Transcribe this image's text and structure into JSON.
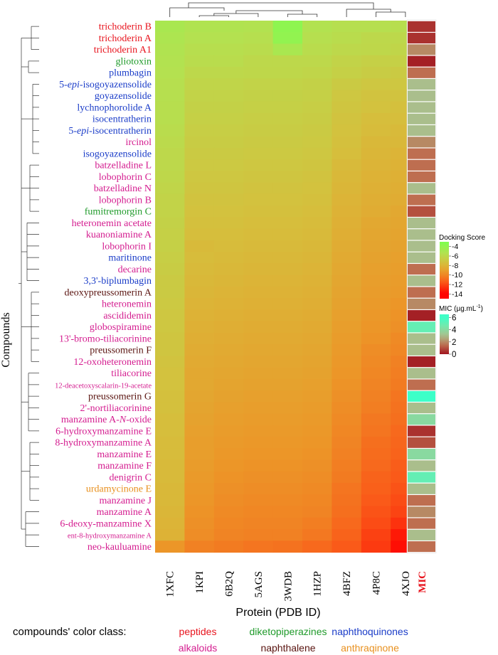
{
  "chart_data": {
    "type": "heatmap",
    "xlabel": "Protein (PDB ID)",
    "ylabel": "Compounds",
    "columns": [
      "1XFC",
      "1KPI",
      "6B2Q",
      "5AGS",
      "3WDB",
      "1HZP",
      "4BFZ",
      "4P8C",
      "4XJO"
    ],
    "mic_label": "MIC",
    "rows": [
      {
        "name": "trichoderin B",
        "class": "peptides",
        "scores": [
          -5.0,
          -5.3,
          -5.3,
          -5.4,
          -3.8,
          -5.4,
          -5.6,
          -5.6,
          -5.7
        ],
        "mic": 0.5
      },
      {
        "name": "trichoderin A",
        "class": "peptides",
        "scores": [
          -5.2,
          -5.5,
          -5.5,
          -5.6,
          -4.0,
          -5.6,
          -5.8,
          -6.0,
          -6.0
        ],
        "mic": 0.5
      },
      {
        "name": "trichoderin A1",
        "class": "peptides",
        "scores": [
          -5.3,
          -5.7,
          -5.7,
          -5.8,
          -5.0,
          -5.8,
          -6.0,
          -6.1,
          -6.2
        ],
        "mic": 2
      },
      {
        "name": "gliotoxin",
        "class": "diketopiperazines",
        "scores": [
          -5.4,
          -5.8,
          -5.8,
          -6.0,
          -6.0,
          -6.0,
          -6.3,
          -6.5,
          -6.5
        ],
        "mic": 0.2
      },
      {
        "name": "plumbagin",
        "class": "naphthoquinones",
        "scores": [
          -5.5,
          -6.0,
          -6.0,
          -6.1,
          -6.1,
          -6.2,
          -6.5,
          -6.7,
          -6.8
        ],
        "mic": 1.5
      },
      {
        "name": "5-epi-isogoyazensolide",
        "class": "naphthoquinones",
        "italic": "epi",
        "scores": [
          -5.6,
          -6.2,
          -6.2,
          -6.3,
          -6.3,
          -6.4,
          -6.8,
          -7.0,
          -7.0
        ],
        "mic": 3
      },
      {
        "name": "goyazensolide",
        "class": "naphthoquinones",
        "scores": [
          -5.6,
          -6.3,
          -6.3,
          -6.4,
          -6.4,
          -6.5,
          -7.0,
          -7.2,
          -7.2
        ],
        "mic": 3
      },
      {
        "name": "lychnophorolide A",
        "class": "naphthoquinones",
        "scores": [
          -5.7,
          -6.4,
          -6.4,
          -6.5,
          -6.5,
          -6.6,
          -7.1,
          -7.3,
          -7.4
        ],
        "mic": 3
      },
      {
        "name": "isocentratherin",
        "class": "naphthoquinones",
        "scores": [
          -5.7,
          -6.5,
          -6.5,
          -6.6,
          -6.6,
          -6.7,
          -7.2,
          -7.5,
          -7.5
        ],
        "mic": 3
      },
      {
        "name": "5-epi-isocentratherin",
        "class": "naphthoquinones",
        "italic": "epi",
        "scores": [
          -5.8,
          -6.6,
          -6.6,
          -6.7,
          -6.7,
          -6.8,
          -7.3,
          -7.6,
          -7.7
        ],
        "mic": 3
      },
      {
        "name": "ircinol",
        "class": "alkaloids",
        "scores": [
          -5.9,
          -6.7,
          -6.7,
          -6.8,
          -6.8,
          -6.9,
          -7.4,
          -7.8,
          -7.8
        ],
        "mic": 2
      },
      {
        "name": "isogoyazensolide",
        "class": "naphthoquinones",
        "scores": [
          -6.0,
          -6.8,
          -6.8,
          -6.9,
          -6.9,
          -7.0,
          -7.5,
          -7.9,
          -8.0
        ],
        "mic": 1.5
      },
      {
        "name": "batzelladine L",
        "class": "alkaloids",
        "scores": [
          -6.0,
          -6.9,
          -6.9,
          -7.0,
          -7.0,
          -7.1,
          -7.7,
          -8.0,
          -8.1
        ],
        "mic": 1.5
      },
      {
        "name": "lobophorin C",
        "class": "alkaloids",
        "scores": [
          -6.1,
          -7.0,
          -7.0,
          -7.1,
          -7.1,
          -7.2,
          -7.8,
          -8.1,
          -8.2
        ],
        "mic": 1.5
      },
      {
        "name": "batzelladine N",
        "class": "alkaloids",
        "scores": [
          -6.2,
          -7.1,
          -7.1,
          -7.2,
          -7.2,
          -7.3,
          -7.9,
          -8.2,
          -8.3
        ],
        "mic": 3
      },
      {
        "name": "lobophorin B",
        "class": "alkaloids",
        "scores": [
          -6.3,
          -7.2,
          -7.2,
          -7.3,
          -7.3,
          -7.4,
          -8.0,
          -8.3,
          -8.4
        ],
        "mic": 1.5
      },
      {
        "name": "fumitremorgin C",
        "class": "diketopiperazines",
        "scores": [
          -6.3,
          -7.3,
          -7.3,
          -7.4,
          -7.4,
          -7.5,
          -8.1,
          -8.4,
          -8.6
        ],
        "mic": 1
      },
      {
        "name": "heteronemin acetate",
        "class": "alkaloids",
        "scores": [
          -6.4,
          -7.4,
          -7.4,
          -7.5,
          -7.5,
          -7.6,
          -8.2,
          -8.6,
          -8.7
        ],
        "mic": 3
      },
      {
        "name": "kuanoniamine A",
        "class": "alkaloids",
        "scores": [
          -6.5,
          -7.5,
          -7.5,
          -7.6,
          -7.6,
          -7.7,
          -8.3,
          -8.7,
          -8.8
        ],
        "mic": 3
      },
      {
        "name": "lobophorin I",
        "class": "alkaloids",
        "scores": [
          -6.5,
          -7.7,
          -7.6,
          -7.7,
          -7.7,
          -7.8,
          -8.4,
          -8.8,
          -8.9
        ],
        "mic": 3
      },
      {
        "name": "maritinone",
        "class": "naphthoquinones",
        "scores": [
          -6.6,
          -7.6,
          -7.7,
          -7.8,
          -7.8,
          -7.9,
          -8.5,
          -8.9,
          -9.0
        ],
        "mic": 3
      },
      {
        "name": "decarine",
        "class": "alkaloids",
        "scores": [
          -6.7,
          -7.7,
          -7.8,
          -7.9,
          -7.9,
          -8.0,
          -8.6,
          -9.0,
          -9.1
        ],
        "mic": 1.5
      },
      {
        "name": "3,3'-biplumbagin",
        "class": "naphthoquinones",
        "scores": [
          -6.8,
          -7.8,
          -7.9,
          -8.0,
          -8.0,
          -8.1,
          -8.7,
          -9.1,
          -9.2
        ],
        "mic": 3
      },
      {
        "name": "deoxypreussomerin A",
        "class": "naphthalene",
        "scores": [
          -6.8,
          -7.9,
          -8.0,
          -8.1,
          -8.1,
          -8.2,
          -8.8,
          -9.2,
          -9.3
        ],
        "mic": 1.5
      },
      {
        "name": "heteronemin",
        "class": "alkaloids",
        "scores": [
          -6.9,
          -8.0,
          -8.1,
          -8.2,
          -8.2,
          -8.3,
          -8.9,
          -9.3,
          -9.5
        ],
        "mic": 2
      },
      {
        "name": "ascididemin",
        "class": "alkaloids",
        "scores": [
          -7.0,
          -8.1,
          -8.2,
          -8.3,
          -8.3,
          -8.4,
          -9.0,
          -9.4,
          -9.6
        ],
        "mic": 0.2
      },
      {
        "name": "globospiramine",
        "class": "alkaloids",
        "scores": [
          -7.0,
          -8.2,
          -8.3,
          -8.4,
          -8.4,
          -8.5,
          -9.1,
          -9.5,
          -9.7
        ],
        "mic": 5
      },
      {
        "name": "13'-bromo-tiliacorinine",
        "class": "alkaloids",
        "scores": [
          -7.1,
          -8.3,
          -8.4,
          -8.5,
          -8.5,
          -8.6,
          -9.2,
          -9.6,
          -9.9
        ],
        "mic": 3
      },
      {
        "name": "preussomerin F",
        "class": "naphthalene",
        "scores": [
          -7.1,
          -8.4,
          -8.5,
          -8.6,
          -8.6,
          -8.7,
          -9.3,
          -9.8,
          -10.0
        ],
        "mic": 3
      },
      {
        "name": "12-oxoheteronemin",
        "class": "alkaloids",
        "scores": [
          -7.2,
          -8.5,
          -8.6,
          -8.7,
          -8.7,
          -8.8,
          -9.4,
          -9.9,
          -10.2
        ],
        "mic": 0.2
      },
      {
        "name": "tiliacorine",
        "class": "alkaloids",
        "scores": [
          -7.3,
          -8.6,
          -8.7,
          -8.8,
          -8.8,
          -8.9,
          -9.5,
          -10.0,
          -10.3
        ],
        "mic": 3
      },
      {
        "name": "12-deacetoxyscalarin-19-acetate",
        "class": "alkaloids",
        "small": true,
        "scores": [
          -7.3,
          -8.6,
          -8.8,
          -8.9,
          -8.9,
          -9.0,
          -9.6,
          -10.1,
          -10.4
        ],
        "mic": 1.5
      },
      {
        "name": "preussomerin G",
        "class": "naphthalene",
        "scores": [
          -7.4,
          -8.7,
          -8.9,
          -9.0,
          -9.0,
          -9.1,
          -9.7,
          -10.2,
          -10.6
        ],
        "mic": 6
      },
      {
        "name": "2'-nortiliacorinine",
        "class": "alkaloids",
        "scores": [
          -7.4,
          -8.8,
          -9.0,
          -9.1,
          -9.1,
          -9.2,
          -9.8,
          -10.3,
          -10.7
        ],
        "mic": 3
      },
      {
        "name": "manzamine A-N-oxide",
        "class": "alkaloids",
        "italic": "N",
        "scores": [
          -7.5,
          -8.9,
          -9.1,
          -9.2,
          -9.2,
          -9.3,
          -9.9,
          -10.5,
          -10.8
        ],
        "mic": 4
      },
      {
        "name": "6-hydroxymanzamine E",
        "class": "alkaloids",
        "scores": [
          -7.5,
          -9.0,
          -9.2,
          -9.3,
          -9.3,
          -9.4,
          -10.0,
          -10.6,
          -11.0
        ],
        "mic": 0.5
      },
      {
        "name": "8-hydroxymanzamine A",
        "class": "alkaloids",
        "scores": [
          -7.6,
          -9.1,
          -9.3,
          -9.4,
          -9.4,
          -9.5,
          -10.1,
          -10.8,
          -11.1
        ],
        "mic": 1
      },
      {
        "name": "manzamine E",
        "class": "alkaloids",
        "scores": [
          -7.6,
          -9.1,
          -9.4,
          -9.5,
          -9.5,
          -9.6,
          -10.2,
          -10.9,
          -11.2
        ],
        "mic": 4
      },
      {
        "name": "manzamine F",
        "class": "alkaloids",
        "scores": [
          -7.7,
          -9.2,
          -9.5,
          -9.6,
          -9.6,
          -9.7,
          -10.3,
          -11.0,
          -11.4
        ],
        "mic": 3
      },
      {
        "name": "denigrin C",
        "class": "alkaloids",
        "scores": [
          -7.7,
          -9.3,
          -9.6,
          -9.7,
          -9.7,
          -9.8,
          -10.4,
          -11.2,
          -11.5
        ],
        "mic": 5
      },
      {
        "name": "urdamycinone E",
        "class": "anthraqinone",
        "scores": [
          -7.8,
          -9.4,
          -9.7,
          -9.8,
          -9.8,
          -9.9,
          -10.6,
          -11.3,
          -11.7
        ],
        "mic": 3
      },
      {
        "name": "manzamine J",
        "class": "alkaloids",
        "scores": [
          -7.8,
          -9.5,
          -9.8,
          -9.9,
          -9.9,
          -10.0,
          -10.7,
          -11.5,
          -11.9
        ],
        "mic": 1.5
      },
      {
        "name": "manzamine A",
        "class": "alkaloids",
        "scores": [
          -7.9,
          -9.6,
          -9.9,
          -10.0,
          -10.0,
          -10.1,
          -10.8,
          -11.7,
          -12.1
        ],
        "mic": 2
      },
      {
        "name": "6-deoxy-manzamine X",
        "class": "alkaloids",
        "scores": [
          -8.0,
          -9.7,
          -10.0,
          -10.1,
          -10.1,
          -10.3,
          -11.0,
          -11.9,
          -12.6
        ],
        "mic": 1.5
      },
      {
        "name": "ent-8-hydroxymanzamine A",
        "class": "alkaloids",
        "small": true,
        "scores": [
          -8.1,
          -9.8,
          -10.1,
          -10.2,
          -10.2,
          -10.5,
          -11.2,
          -12.2,
          -13.3
        ],
        "mic": 3
      },
      {
        "name": "neo-kauluamine",
        "class": "alkaloids",
        "scores": [
          -9.5,
          -10.2,
          -10.4,
          -10.6,
          -10.7,
          -11.0,
          -11.5,
          -12.4,
          -13.6
        ],
        "mic": 1.5
      }
    ],
    "legend_score": {
      "title": "Docking Score",
      "ticks": [
        "-4",
        "-6",
        "-8",
        "-10",
        "-12",
        "-14"
      ],
      "range": [
        -3,
        -15
      ]
    },
    "legend_mic": {
      "title_prefix": "MIC (µg.mL",
      "title_sup": "-1",
      "title_suffix": ")",
      "ticks": [
        "6",
        "4",
        "2",
        "0"
      ],
      "range": [
        0,
        6.5
      ]
    },
    "class_legend": {
      "title": "compounds' color class:",
      "items": [
        {
          "key": "peptides",
          "label": "peptides",
          "color": "#e8141e"
        },
        {
          "key": "diketopiperazines",
          "label": "diketopiperazines",
          "color": "#1f9a2a"
        },
        {
          "key": "naphthoquinones",
          "label": "naphthoquinones",
          "color": "#1a3cc8"
        },
        {
          "key": "alkaloids",
          "label": "alkaloids",
          "color": "#d41c8f"
        },
        {
          "key": "naphthalene",
          "label": "naphthalene",
          "color": "#5a1410"
        },
        {
          "key": "anthraqinone",
          "label": "anthraqinone",
          "color": "#e8901e"
        }
      ]
    },
    "mic_color": "#e8141e"
  }
}
